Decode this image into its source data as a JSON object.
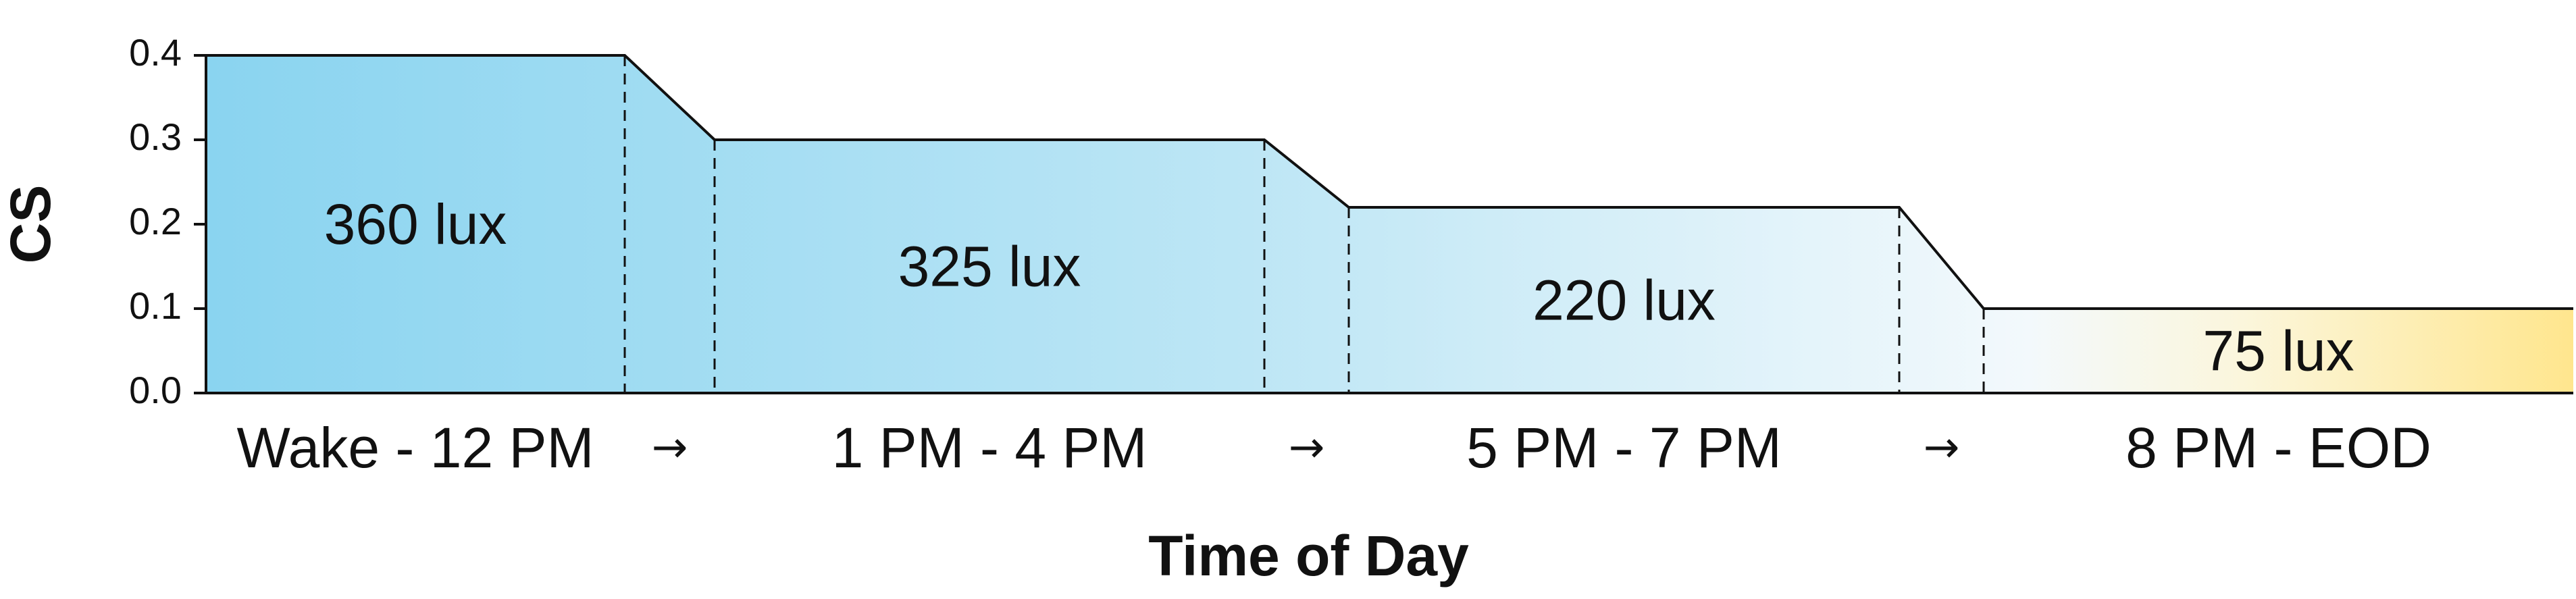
{
  "chart_data": {
    "type": "area",
    "xlabel": "Time of Day",
    "ylabel": "CS",
    "ylim": [
      0,
      0.4
    ],
    "yticks": [
      "0.0",
      "0.1",
      "0.2",
      "0.3",
      "0.4"
    ],
    "grid": false,
    "categories": [
      "Wake - 12 PM",
      "1 PM - 4 PM",
      "5 PM - 7 PM",
      "8 PM - EOD"
    ],
    "values": [
      0.4,
      0.3,
      0.22,
      0.1
    ],
    "labels": [
      "360 lux",
      "325 lux",
      "220 lux",
      "75 lux"
    ],
    "transition_marker": "→",
    "colors": {
      "start": "#8ad4f0",
      "middle": "#f3f9fc",
      "end": "#ffe68e",
      "line": "#111111"
    }
  }
}
